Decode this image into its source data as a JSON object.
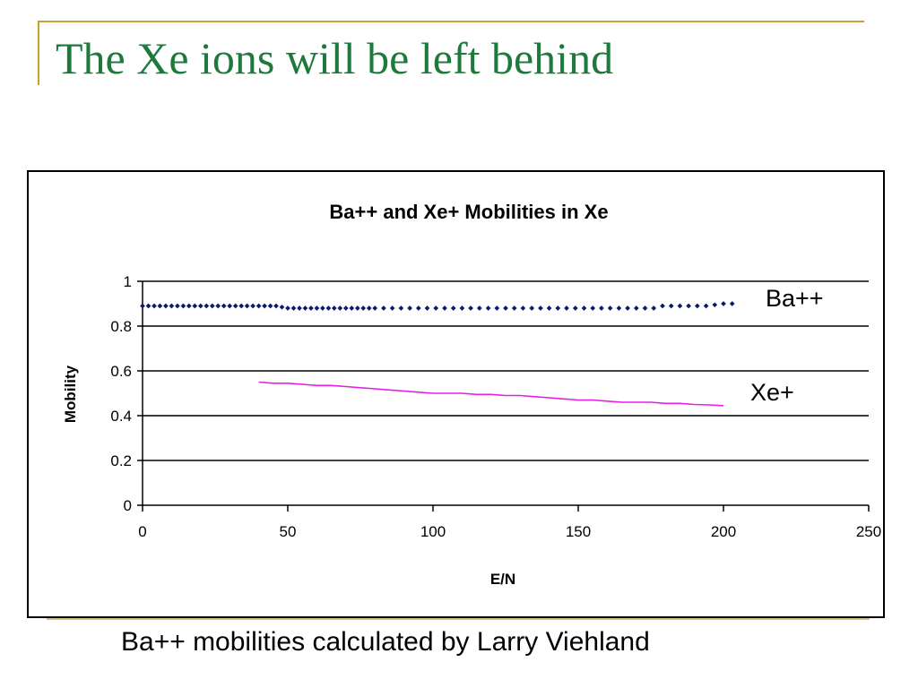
{
  "slide": {
    "title": "The Xe ions will be left behind",
    "caption": "Ba++ mobilities calculated by Larry Viehland"
  },
  "colors": {
    "title": "#1e7a3c",
    "accent": "#c9a227",
    "ba_series": "#0a1a6e",
    "xe_series": "#e61ee6"
  },
  "chart_data": {
    "type": "scatter",
    "title": "Ba++ and Xe+ Mobilities in Xe",
    "xlabel": "E/N",
    "ylabel": "Mobility",
    "xlim": [
      0,
      250
    ],
    "ylim": [
      0,
      1
    ],
    "xticks": [
      "0",
      "50",
      "100",
      "150",
      "200",
      "250"
    ],
    "yticks": [
      "0",
      "0.2",
      "0.4",
      "0.6",
      "0.8",
      "1"
    ],
    "grid": "horizontal",
    "series": [
      {
        "name": "Ba++",
        "style": "markers",
        "x": [
          0,
          2,
          4,
          6,
          8,
          10,
          12,
          14,
          16,
          18,
          20,
          22,
          24,
          26,
          28,
          30,
          32,
          34,
          36,
          38,
          40,
          42,
          44,
          46,
          48,
          50,
          52,
          54,
          56,
          58,
          60,
          62,
          64,
          66,
          68,
          70,
          72,
          74,
          76,
          78,
          80,
          83,
          86,
          89,
          92,
          95,
          98,
          101,
          104,
          107,
          110,
          113,
          116,
          119,
          122,
          125,
          128,
          131,
          134,
          137,
          140,
          143,
          146,
          149,
          152,
          155,
          158,
          161,
          164,
          167,
          170,
          173,
          176,
          179,
          182,
          185,
          188,
          191,
          194,
          197,
          200,
          203
        ],
        "y": [
          0.89,
          0.89,
          0.89,
          0.89,
          0.89,
          0.89,
          0.89,
          0.89,
          0.89,
          0.89,
          0.89,
          0.89,
          0.89,
          0.89,
          0.89,
          0.89,
          0.89,
          0.89,
          0.89,
          0.89,
          0.89,
          0.89,
          0.89,
          0.89,
          0.885,
          0.88,
          0.88,
          0.88,
          0.88,
          0.88,
          0.88,
          0.88,
          0.88,
          0.88,
          0.88,
          0.88,
          0.88,
          0.88,
          0.88,
          0.88,
          0.88,
          0.88,
          0.88,
          0.88,
          0.88,
          0.88,
          0.88,
          0.88,
          0.88,
          0.88,
          0.88,
          0.88,
          0.88,
          0.88,
          0.88,
          0.88,
          0.88,
          0.88,
          0.88,
          0.88,
          0.88,
          0.88,
          0.88,
          0.88,
          0.88,
          0.88,
          0.88,
          0.88,
          0.88,
          0.88,
          0.88,
          0.88,
          0.88,
          0.89,
          0.89,
          0.89,
          0.89,
          0.89,
          0.89,
          0.895,
          0.9,
          0.9
        ]
      },
      {
        "name": "Xe+",
        "style": "line",
        "x": [
          40,
          45,
          50,
          55,
          60,
          65,
          70,
          75,
          80,
          85,
          90,
          95,
          100,
          105,
          110,
          115,
          120,
          125,
          130,
          135,
          140,
          145,
          150,
          155,
          160,
          165,
          170,
          175,
          180,
          185,
          190,
          195,
          200
        ],
        "y": [
          0.55,
          0.545,
          0.545,
          0.54,
          0.535,
          0.535,
          0.53,
          0.525,
          0.52,
          0.515,
          0.51,
          0.505,
          0.5,
          0.5,
          0.5,
          0.495,
          0.495,
          0.49,
          0.49,
          0.485,
          0.48,
          0.475,
          0.47,
          0.47,
          0.465,
          0.46,
          0.46,
          0.46,
          0.455,
          0.455,
          0.45,
          0.448,
          0.445
        ]
      }
    ]
  }
}
